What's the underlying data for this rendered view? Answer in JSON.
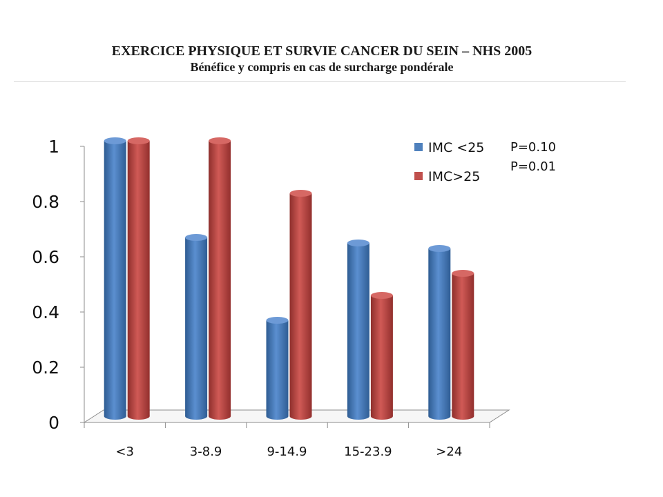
{
  "chart_data": {
    "type": "bar",
    "title": "EXERCICE PHYSIQUE ET SURVIE CANCER DU SEIN – NHS 2005",
    "subtitle": "Bénéfice y compris en cas de surcharge pondérale",
    "categories": [
      "<3",
      "3-8.9",
      "9-14.9",
      "15-23.9",
      ">24"
    ],
    "series": [
      {
        "name": "IMC <25",
        "values": [
          1.0,
          0.65,
          0.35,
          0.63,
          0.61
        ],
        "color": "#4f81bd",
        "note": "P=0.10"
      },
      {
        "name": "IMC>25",
        "values": [
          1.0,
          1.0,
          0.81,
          0.44,
          0.52
        ],
        "color": "#c0504d",
        "note": "P=0.01"
      }
    ],
    "yticks": [
      "0",
      "0.2",
      "0.4",
      "0.6",
      "0.8",
      "1"
    ],
    "ylim": [
      0,
      1
    ],
    "legend_position": "top-right",
    "grid": false
  }
}
